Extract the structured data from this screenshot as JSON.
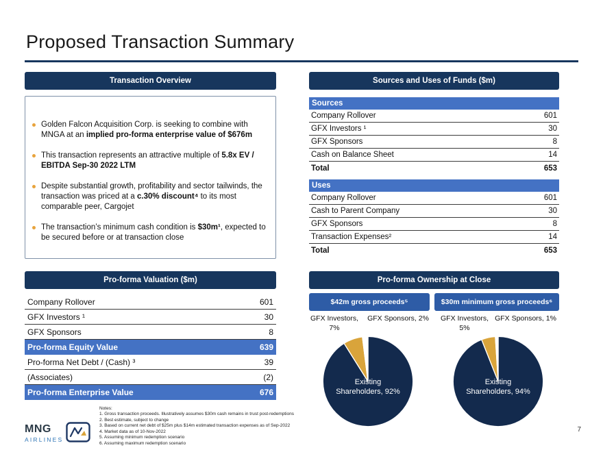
{
  "page": {
    "title": "Proposed Transaction Summary",
    "page_number": "7"
  },
  "colors": {
    "navy": "#17365D",
    "pie_navy": "#132A4D",
    "medium_blue": "#4472C4",
    "button_blue": "#2E5CA6",
    "gold": "#D9A43B",
    "bullet_gold": "#E8A33D"
  },
  "overview": {
    "header": "Transaction Overview",
    "bullets": [
      {
        "pre": "Golden Falcon Acquisition Corp. is seeking to combine with MNGA at an ",
        "bold": "implied pro-forma enterprise value of $676m",
        "post": ""
      },
      {
        "pre": "This transaction represents an attractive multiple of ",
        "bold": "5.8x EV / EBITDA Sep-30 2022 LTM",
        "post": ""
      },
      {
        "pre": "Despite substantial growth, profitability and sector tailwinds, the transaction was priced at a ",
        "bold": "c.30% discount⁴",
        "post": " to its most comparable peer, Cargojet"
      },
      {
        "pre": "The transaction’s minimum cash condition is ",
        "bold": "$30m¹",
        "post": ", expected to be secured before or at transaction close"
      }
    ]
  },
  "sources_uses": {
    "header": "Sources and Uses of Funds ($m)",
    "sources": {
      "label": "Sources",
      "rows": [
        {
          "label": "Company Rollover",
          "value": "601"
        },
        {
          "label": "GFX Investors ¹",
          "value": "30"
        },
        {
          "label": "GFX Sponsors",
          "value": "8"
        },
        {
          "label": "Cash on Balance Sheet",
          "value": "14"
        }
      ],
      "total": {
        "label": "Total",
        "value": "653"
      }
    },
    "uses": {
      "label": "Uses",
      "rows": [
        {
          "label": "Company Rollover",
          "value": "601"
        },
        {
          "label": "Cash to Parent Company",
          "value": "30"
        },
        {
          "label": "GFX Sponsors",
          "value": "8"
        },
        {
          "label": "Transaction Expenses²",
          "value": "14"
        }
      ],
      "total": {
        "label": "Total",
        "value": "653"
      }
    }
  },
  "valuation": {
    "header": "Pro-forma Valuation ($m)",
    "rows": [
      {
        "label": "Company Rollover",
        "value": "601"
      },
      {
        "label": "GFX Investors ¹",
        "value": "30"
      },
      {
        "label": "GFX Sponsors",
        "value": "8"
      },
      {
        "label": "Pro-forma Equity Value",
        "value": "639"
      },
      {
        "label": "Pro-forma Net Debt / (Cash) ³",
        "value": "39"
      },
      {
        "label": "(Associates)",
        "value": "(2)"
      },
      {
        "label": "Pro-forma Enterprise Value",
        "value": "676"
      }
    ]
  },
  "ownership": {
    "header": "Pro-forma Ownership at Close",
    "scenarios": [
      {
        "button": "$42m gross proceeds⁵",
        "investors_label": "GFX Investors, 7%",
        "sponsors_label": "GFX Sponsors, 2%",
        "center_label": "Existing Shareholders, 92%"
      },
      {
        "button": "$30m minimum gross proceeds⁶",
        "investors_label": "GFX Investors, 5%",
        "sponsors_label": "GFX Sponsors, 1%",
        "center_label": "Existing Shareholders, 94%"
      }
    ]
  },
  "chart_data": [
    {
      "type": "pie",
      "title": "$42m gross proceeds⁵",
      "labels": [
        "Existing Shareholders",
        "GFX Investors",
        "GFX Sponsors"
      ],
      "values": [
        92,
        7,
        2
      ],
      "colors": [
        "#132A4D",
        "#D9A43B",
        "#FFFFFF"
      ],
      "legend_position": "none"
    },
    {
      "type": "pie",
      "title": "$30m minimum gross proceeds⁶",
      "labels": [
        "Existing Shareholders",
        "GFX Investors",
        "GFX Sponsors"
      ],
      "values": [
        94,
        5,
        1
      ],
      "colors": [
        "#132A4D",
        "#D9A43B",
        "#FFFFFF"
      ],
      "legend_position": "none"
    }
  ],
  "notes": {
    "title": "Notes:",
    "items": [
      "1. Gross transaction proceeds. Illustratively assumes $30m cash remains in trust post-redemptions",
      "2. Best estimate, subject to change",
      "3. Based on current net debt of $25m plus $14m estimated transaction expenses as of Sep-2022",
      "4. Market data as of 10-Nov-2022",
      "5. Assuming minimum redemption scenario",
      "6. Assuming maximum redemption scenario"
    ]
  },
  "logo": {
    "name": "MNG",
    "sub": "AIRLINES"
  }
}
